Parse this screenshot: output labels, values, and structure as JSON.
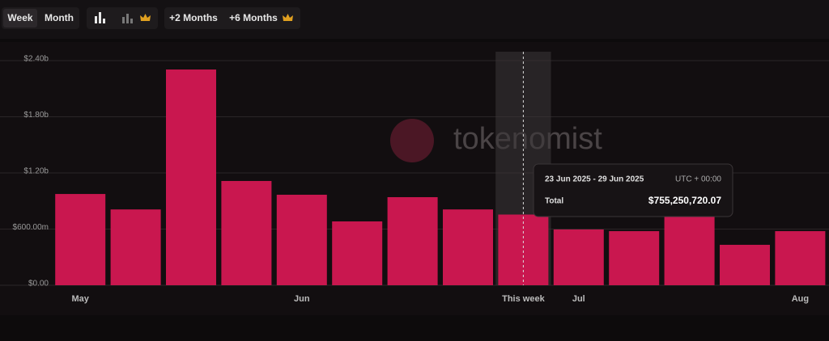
{
  "toolbar": {
    "period_buttons": [
      "Week",
      "Month"
    ],
    "range_buttons": [
      "+2 Months",
      "+6 Months"
    ]
  },
  "chart_data": {
    "type": "bar",
    "watermark": "tokenomist",
    "categories": [
      "May",
      null,
      null,
      null,
      "Jun",
      null,
      null,
      null,
      "This week",
      "Jul",
      null,
      null,
      null,
      "Aug"
    ],
    "values": [
      975000000,
      810000000,
      2305000000,
      1114000000,
      967000000,
      682000000,
      941000000,
      810000000,
      755250720.07,
      596000000,
      578000000,
      850000000,
      432000000,
      578000000
    ],
    "value_labels": [
      null,
      null,
      null,
      null,
      null,
      null,
      null,
      null,
      "$755,250,720.07",
      null,
      null,
      null,
      null,
      null
    ],
    "color": "#c9174f",
    "ylim": [
      0,
      2400000000
    ],
    "yticks": [
      {
        "value": 0,
        "label": "$0.00"
      },
      {
        "value": 600000000,
        "label": "$600.00m"
      },
      {
        "value": 1200000000,
        "label": "$1.20b"
      },
      {
        "value": 1800000000,
        "label": "$1.80b"
      },
      {
        "value": 2400000000,
        "label": "$2.40b"
      }
    ],
    "grid": true,
    "tooltip": {
      "title": "23 Jun 2025 - 29 Jun 2025",
      "timezone": "UTC + 00:00",
      "label": "Total"
    }
  }
}
